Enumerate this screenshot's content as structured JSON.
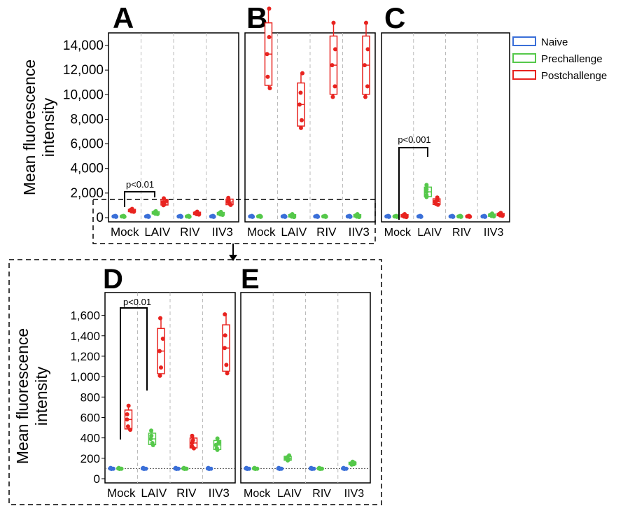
{
  "figure": {
    "ylabel_line1": "Mean fluorescence",
    "ylabel_line2": "intensity",
    "legend": [
      {
        "label": "Naive",
        "color": "#3a6fd8"
      },
      {
        "label": "Prechallenge",
        "color": "#55c84a"
      },
      {
        "label": "Postchallenge",
        "color": "#e8231f"
      }
    ]
  },
  "chart_data": [
    {
      "panel": "A",
      "type": "box",
      "categories": [
        "Mock",
        "LAIV",
        "RIV",
        "IIV3"
      ],
      "ylim": [
        0,
        14000
      ],
      "yticks": [
        "0",
        "2,000",
        "4,000",
        "6,000",
        "8,000",
        "10,000",
        "12,000",
        "14,000"
      ],
      "ytick_values": [
        0,
        2000,
        4000,
        6000,
        8000,
        10000,
        12000,
        14000
      ],
      "annotation": "p<0.01",
      "series": [
        {
          "name": "Naive",
          "values": [
            100,
            100,
            100,
            100
          ]
        },
        {
          "name": "Prechallenge",
          "values": [
            100,
            390,
            100,
            330
          ]
        },
        {
          "name": "Postchallenge",
          "values": [
            580,
            1250,
            350,
            1280
          ]
        }
      ]
    },
    {
      "panel": "B",
      "type": "box",
      "categories": [
        "Mock",
        "LAIV",
        "RIV",
        "IIV3"
      ],
      "ylim": [
        0,
        14000
      ],
      "series": [
        {
          "name": "Naive",
          "values": [
            100,
            100,
            100,
            100
          ]
        },
        {
          "name": "Prechallenge",
          "values": [
            100,
            150,
            100,
            150
          ]
        },
        {
          "name": "Postchallenge",
          "values": [
            13300,
            9200,
            12400,
            12400
          ]
        }
      ]
    },
    {
      "panel": "C",
      "type": "box",
      "categories": [
        "Mock",
        "LAIV",
        "RIV",
        "IIV3"
      ],
      "ylim": [
        0,
        14000
      ],
      "annotation": "p<0.001",
      "series": [
        {
          "name": "Naive",
          "values": [
            100,
            100,
            100,
            100
          ]
        },
        {
          "name": "Prechallenge",
          "values": [
            100,
            2100,
            100,
            200
          ]
        },
        {
          "name": "Postchallenge",
          "values": [
            150,
            1300,
            100,
            250
          ]
        }
      ]
    },
    {
      "panel": "D",
      "type": "box",
      "categories": [
        "Mock",
        "LAIV",
        "RIV",
        "IIV3"
      ],
      "ylim": [
        0,
        1700
      ],
      "yticks": [
        "0",
        "200",
        "400",
        "600",
        "800",
        "1,000",
        "1,200",
        "1,400",
        "1,600"
      ],
      "ytick_values": [
        0,
        200,
        400,
        600,
        800,
        1000,
        1200,
        1400,
        1600
      ],
      "annotation": "p<0.01",
      "series": [
        {
          "name": "Naive",
          "values": [
            100,
            100,
            100,
            100
          ]
        },
        {
          "name": "Prechallenge",
          "values": [
            100,
            390,
            100,
            330
          ]
        },
        {
          "name": "Postchallenge",
          "values": [
            580,
            1250,
            350,
            1280
          ]
        }
      ]
    },
    {
      "panel": "E",
      "type": "box",
      "categories": [
        "Mock",
        "LAIV",
        "RIV",
        "IIV3"
      ],
      "ylim": [
        0,
        1700
      ],
      "series": [
        {
          "name": "Naive",
          "values": [
            100,
            100,
            100,
            100
          ]
        },
        {
          "name": "Prechallenge",
          "values": [
            100,
            200,
            100,
            150
          ]
        }
      ]
    }
  ]
}
